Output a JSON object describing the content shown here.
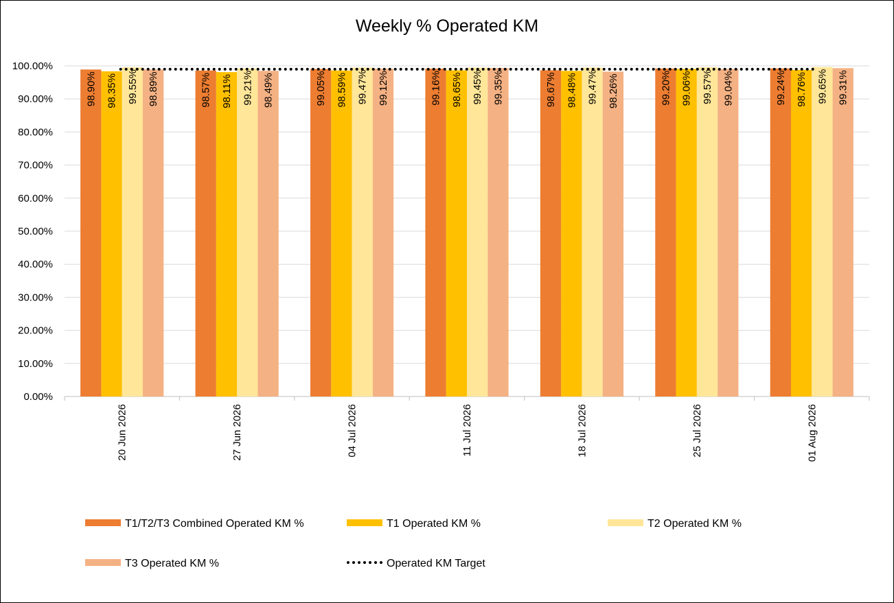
{
  "chart_data": {
    "type": "bar",
    "title": "Weekly % Operated KM",
    "xlabel": "",
    "ylabel": "",
    "ylim": [
      0,
      100
    ],
    "yticks": [
      "0.00%",
      "10.00%",
      "20.00%",
      "30.00%",
      "40.00%",
      "50.00%",
      "60.00%",
      "70.00%",
      "80.00%",
      "90.00%",
      "100.00%"
    ],
    "grid": true,
    "legend_position": "bottom",
    "categories": [
      "20 Jun 2026",
      "27 Jun 2026",
      "04 Jul 2026",
      "11 Jul 2026",
      "18 Jul 2026",
      "25 Jul 2026",
      "01 Aug 2026"
    ],
    "series": [
      {
        "name": "T1/T2/T3 Combined Operated KM %",
        "color": "#ED7D31",
        "values": [
          98.9,
          98.57,
          99.05,
          99.16,
          98.67,
          99.2,
          99.24
        ],
        "labels": [
          "98.90%",
          "98.57%",
          "99.05%",
          "99.16%",
          "98.67%",
          "99.20%",
          "99.24%"
        ]
      },
      {
        "name": "T1 Operated KM %",
        "color": "#FFC000",
        "values": [
          98.35,
          98.11,
          98.59,
          98.65,
          98.48,
          99.06,
          98.76
        ],
        "labels": [
          "98.35%",
          "98.11%",
          "98.59%",
          "98.65%",
          "98.48%",
          "99.06%",
          "98.76%"
        ]
      },
      {
        "name": "T2 Operated KM %",
        "color": "#FFE699",
        "values": [
          99.55,
          99.21,
          99.47,
          99.45,
          99.47,
          99.57,
          99.65
        ],
        "labels": [
          "99.55%",
          "99.21%",
          "99.47%",
          "99.45%",
          "99.47%",
          "99.57%",
          "99.65%"
        ]
      },
      {
        "name": "T3 Operated KM %",
        "color": "#F4B183",
        "values": [
          98.89,
          98.49,
          99.12,
          99.35,
          98.26,
          99.04,
          99.31
        ],
        "labels": [
          "98.89%",
          "98.49%",
          "99.12%",
          "99.35%",
          "98.26%",
          "99.04%",
          "99.31%"
        ]
      }
    ],
    "target": {
      "name": "Operated KM Target",
      "value": 99.0,
      "style": "dotted",
      "color": "#000000"
    }
  }
}
